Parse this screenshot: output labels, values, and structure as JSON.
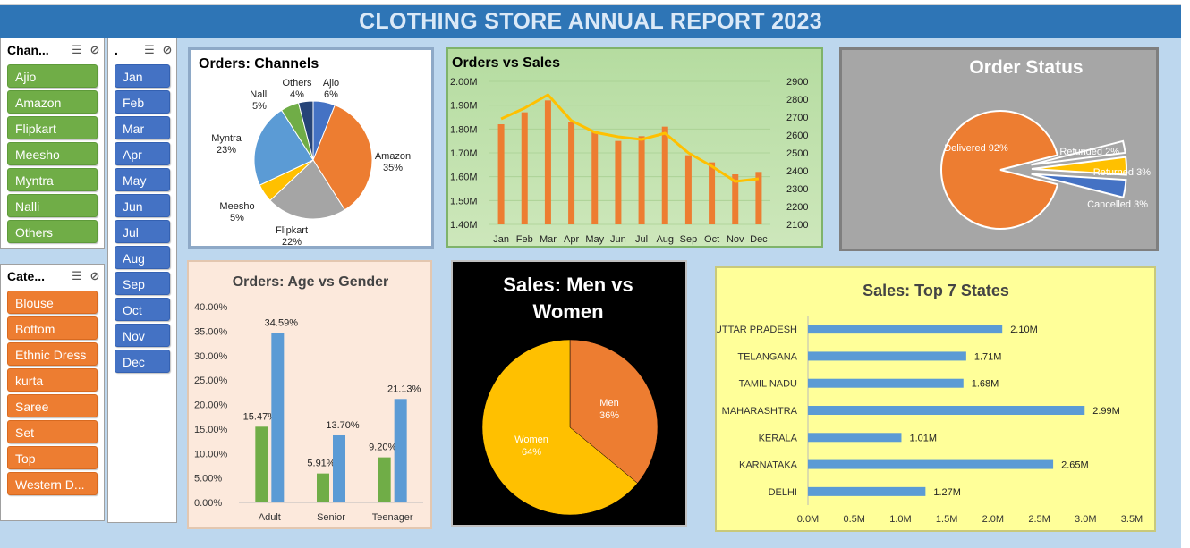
{
  "header": {
    "title": "CLOTHING STORE ANNUAL REPORT 2023"
  },
  "slicers": {
    "channel": {
      "title": "Chan...",
      "items": [
        "Ajio",
        "Amazon",
        "Flipkart",
        "Meesho",
        "Myntra",
        "Nalli",
        "Others"
      ]
    },
    "month": {
      "title": ".",
      "items": [
        "Jan",
        "Feb",
        "Mar",
        "Apr",
        "May",
        "Jun",
        "Jul",
        "Aug",
        "Sep",
        "Oct",
        "Nov",
        "Dec"
      ]
    },
    "category": {
      "title": "Cate...",
      "items": [
        "Blouse",
        "Bottom",
        "Ethnic Dress",
        "kurta",
        "Saree",
        "Set",
        "Top",
        "Western D..."
      ]
    }
  },
  "colors": {
    "orange": "#ed7d31",
    "blue": "#5b9bd5",
    "gray": "#a5a5a5",
    "gold": "#ffc000",
    "green": "#70ad47",
    "navy": "#264478",
    "darkblue": "#4472c4"
  },
  "chart_data": [
    {
      "id": "channels",
      "type": "pie",
      "title": "Orders: Channels",
      "labels": [
        "Ajio",
        "Amazon",
        "Flipkart",
        "Meesho",
        "Myntra",
        "Nalli",
        "Others"
      ],
      "values": [
        6,
        35,
        22,
        5,
        23,
        5,
        4
      ],
      "value_labels": [
        "6%",
        "35%",
        "22%",
        "5%",
        "23%",
        "5%",
        "4%"
      ]
    },
    {
      "id": "orders_vs_sales",
      "type": "bar",
      "title": "Orders vs Sales",
      "categories": [
        "Jan",
        "Feb",
        "Mar",
        "Apr",
        "May",
        "Jun",
        "Jul",
        "Aug",
        "Sep",
        "Oct",
        "Nov",
        "Dec"
      ],
      "series": [
        {
          "values": [
            1.82,
            1.87,
            1.92,
            1.83,
            1.79,
            1.75,
            1.77,
            1.81,
            1.69,
            1.66,
            1.61,
            1.62
          ],
          "axis": "left"
        },
        {
          "values": [
            2690,
            2750,
            2825,
            2680,
            2615,
            2590,
            2575,
            2610,
            2500,
            2425,
            2340,
            2355
          ],
          "axis": "right"
        }
      ],
      "left_ticks": [
        "2.00M",
        "1.90M",
        "1.80M",
        "1.70M",
        "1.60M",
        "1.50M",
        "1.40M"
      ],
      "right_ticks": [
        "2900",
        "2800",
        "2700",
        "2600",
        "2500",
        "2400",
        "2300",
        "2200",
        "2100"
      ],
      "ylim_left": [
        1.4,
        2.0
      ],
      "ylim_right": [
        2100,
        2900
      ]
    },
    {
      "id": "order_status",
      "type": "pie",
      "title": "Order Status",
      "labels": [
        "Delivered",
        "Refunded",
        "Returned",
        "Cancelled"
      ],
      "values": [
        92,
        2,
        3,
        3
      ],
      "value_labels": [
        "Delivered 92%",
        "Refunded 2%",
        "Returned 3%",
        "Cancelled 3%"
      ]
    },
    {
      "id": "age_gender",
      "type": "bar",
      "title": "Orders: Age vs Gender",
      "categories": [
        "Adult",
        "Senior",
        "Teenager"
      ],
      "series": [
        {
          "values": [
            15.47,
            5.91,
            9.2
          ],
          "labels": [
            "15.47%",
            "5.91%",
            "9.20%"
          ]
        },
        {
          "values": [
            34.59,
            13.7,
            21.13
          ],
          "labels": [
            "34.59%",
            "13.70%",
            "21.13%"
          ]
        }
      ],
      "y_ticks": [
        "40.00%",
        "35.00%",
        "30.00%",
        "25.00%",
        "20.00%",
        "15.00%",
        "10.00%",
        "5.00%",
        "0.00%"
      ],
      "ylim": [
        0,
        40
      ]
    },
    {
      "id": "men_women",
      "type": "pie",
      "title": "Sales: Men vs Women",
      "labels": [
        "Men",
        "Women"
      ],
      "values": [
        36,
        64
      ],
      "value_labels": [
        "36%",
        "64%"
      ]
    },
    {
      "id": "top_states",
      "type": "bar",
      "orientation": "horizontal",
      "title": "Sales: Top 7 States",
      "categories": [
        "UTTAR PRADESH",
        "TELANGANA",
        "TAMIL NADU",
        "MAHARASHTRA",
        "KERALA",
        "KARNATAKA",
        "DELHI"
      ],
      "values": [
        2.1,
        1.71,
        1.68,
        2.99,
        1.01,
        2.65,
        1.27
      ],
      "value_labels": [
        "2.10M",
        "1.71M",
        "1.68M",
        "2.99M",
        "1.01M",
        "2.65M",
        "1.27M"
      ],
      "x_ticks": [
        "0.0M",
        "0.5M",
        "1.0M",
        "1.5M",
        "2.0M",
        "2.5M",
        "3.0M",
        "3.5M"
      ],
      "xlim": [
        0,
        3.5
      ]
    }
  ]
}
